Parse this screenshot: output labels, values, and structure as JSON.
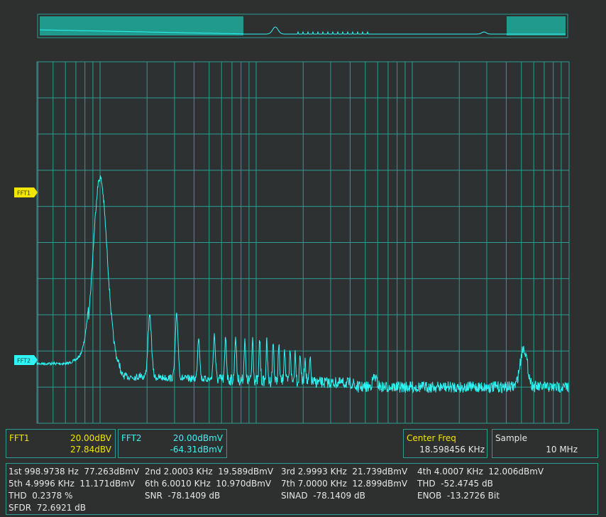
{
  "markers": {
    "fft1": "FFT1",
    "fft2": "FFT2"
  },
  "panels": {
    "fft1": {
      "label": "FFT1",
      "scale": "20.00dBV",
      "offset": "27.84dBV"
    },
    "fft2": {
      "label": "FFT2",
      "scale": "20.00dBmV",
      "offset": "-64.31dBmV"
    },
    "center_freq": {
      "label": "Center Freq",
      "value": "18.598456 KHz"
    },
    "sample": {
      "label": "Sample",
      "value": "10 MHz"
    }
  },
  "measurements": [
    [
      "1st 998.9738 Hz  77.263dBmV",
      "2nd 2.0003 KHz  19.589dBmV",
      "3rd 2.9993 KHz  21.739dBmV",
      "4th 4.0007 KHz  12.006dBmV"
    ],
    [
      "5th 4.9996 KHz  11.171dBmV",
      "6th 6.0010 KHz  10.970dBmV",
      "7th 7.0000 KHz  12.899dBmV",
      "THD  -52.4745 dB"
    ],
    [
      "THD  0.2378 %",
      "SNR  -78.1409 dB",
      "SINAD  -78.1409 dB",
      "ENOB  -13.2726 Bit"
    ],
    [
      "SFDR  72.6921 dB"
    ]
  ]
}
